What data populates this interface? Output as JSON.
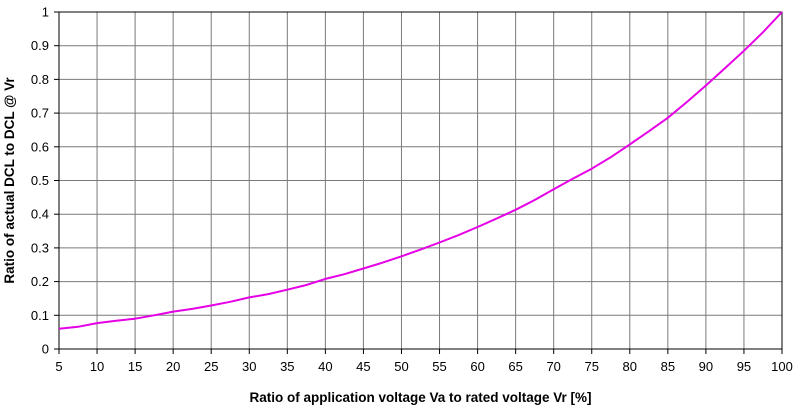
{
  "chart_data": {
    "type": "line",
    "title": "",
    "xlabel": "Ratio of application voltage Va to rated voltage Vr [%]",
    "ylabel": "Ratio of actual DCL to DCL @ Vr",
    "xlim": [
      5,
      100
    ],
    "ylim": [
      0,
      1
    ],
    "x_ticks": [
      5,
      10,
      15,
      20,
      25,
      30,
      35,
      40,
      45,
      50,
      55,
      60,
      65,
      70,
      75,
      80,
      85,
      90,
      95,
      100
    ],
    "y_ticks": [
      0,
      0.1,
      0.2,
      0.3,
      0.4,
      0.5,
      0.6,
      0.7,
      0.8,
      0.9,
      1
    ],
    "y_tick_labels": [
      "0",
      "0.1",
      "0.2",
      "0.3",
      "0.4",
      "0.5",
      "0.6",
      "0.7",
      "0.8",
      "0.9",
      "1"
    ],
    "grid": true,
    "legend": "none",
    "series": [
      {
        "color": "#e600e6",
        "x": [
          5,
          7.5,
          10,
          12.5,
          15,
          17.5,
          20,
          22.5,
          25,
          27.5,
          30,
          32.5,
          35,
          37.5,
          40,
          42.5,
          45,
          47.5,
          50,
          52.5,
          55,
          57.5,
          60,
          62.5,
          65,
          67.5,
          70,
          72.5,
          75,
          77.5,
          80,
          82.5,
          85,
          87.5,
          90,
          92.5,
          95,
          97.5,
          100
        ],
        "values": [
          0.06,
          0.066,
          0.077,
          0.084,
          0.09,
          0.1,
          0.111,
          0.119,
          0.129,
          0.14,
          0.153,
          0.163,
          0.176,
          0.19,
          0.208,
          0.222,
          0.239,
          0.256,
          0.275,
          0.295,
          0.316,
          0.338,
          0.362,
          0.387,
          0.413,
          0.442,
          0.474,
          0.505,
          0.535,
          0.569,
          0.607,
          0.646,
          0.686,
          0.733,
          0.782,
          0.833,
          0.885,
          0.94,
          1.0
        ]
      }
    ]
  }
}
